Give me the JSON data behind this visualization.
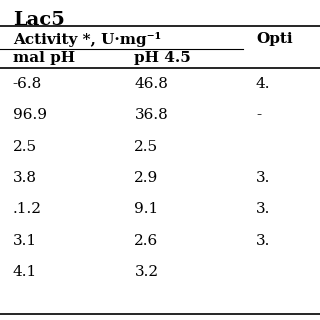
{
  "title_partial": "Lac5",
  "header_row1_col1": "Activity *, U·mg⁻¹",
  "header_row1_col2": "Opti",
  "header_row2_col1": "mal pH",
  "header_row2_col2": "pH 4.5",
  "rows": [
    [
      "-6.8",
      "46.8",
      "4."
    ],
    [
      "96.9",
      "36.8",
      "-"
    ],
    [
      "2.5",
      "2.5",
      ""
    ],
    [
      "3.8",
      "2.9",
      "3."
    ],
    [
      ".1.2",
      "9.1",
      "3."
    ],
    [
      "3.1",
      "2.6",
      "3."
    ],
    [
      "4.1",
      "3.2",
      ""
    ]
  ],
  "background": "#ffffff",
  "text_color": "#000000",
  "line_color": "#000000",
  "font_size": 11,
  "header_font_size": 11,
  "title_font_size": 14
}
